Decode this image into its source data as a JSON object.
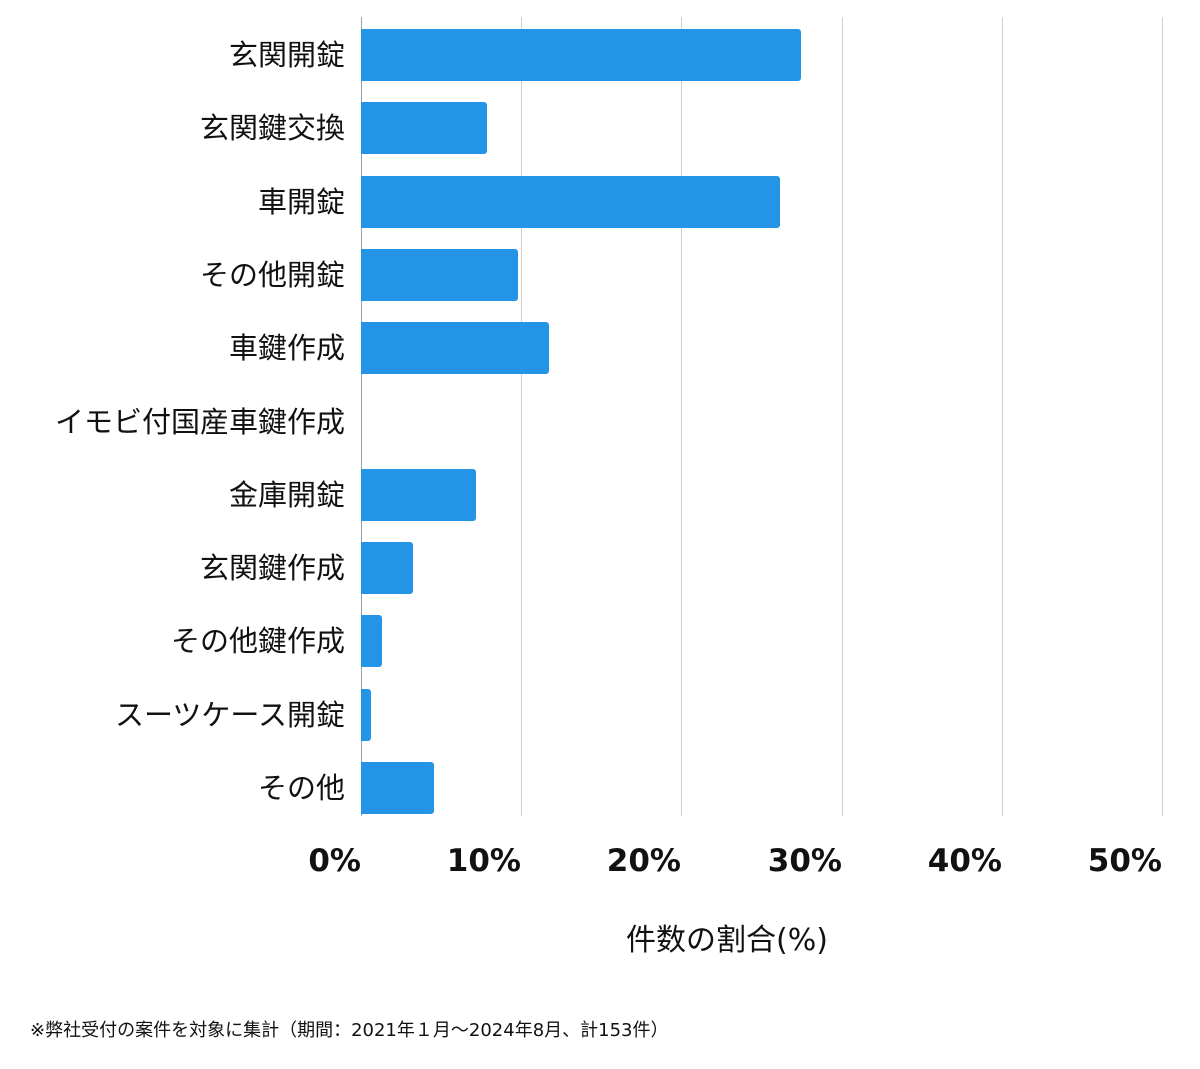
{
  "chart_data": {
    "type": "bar",
    "orientation": "horizontal",
    "title": "",
    "categories": [
      "玄関開錠",
      "玄関鍵交換",
      "車開錠",
      "その他開錠",
      "車鍵作成",
      "イモビ付国産車鍵作成",
      "金庫開錠",
      "玄関鍵作成",
      "その他鍵作成",
      "スーツケース開錠",
      "その他"
    ],
    "values": [
      27.45,
      7.84,
      26.14,
      9.8,
      11.76,
      0,
      7.19,
      3.27,
      1.31,
      0.65,
      4.58
    ],
    "xlabel": "件数の割合(%)",
    "ylabel": "",
    "xlim": [
      0,
      50
    ],
    "xticks": [
      0,
      10,
      20,
      30,
      40,
      50
    ],
    "xtick_labels": [
      "0%",
      "10%",
      "20%",
      "30%",
      "40%",
      "50%"
    ],
    "grid": "vertical",
    "legend": "none",
    "bar_color": "#2494e6",
    "footnote": "※弊社受付の案件を対象に集計（期間：2021年１月～2024年8月、計153件）"
  },
  "axis": {
    "xlabel": "件数の割合(%)",
    "ticks": [
      "0%",
      "10%",
      "20%",
      "30%",
      "40%",
      "50%"
    ]
  },
  "categories": [
    "玄関開錠",
    "玄関鍵交換",
    "車開錠",
    "その他開錠",
    "車鍵作成",
    "イモビ付国産車鍵作成",
    "金庫開錠",
    "玄関鍵作成",
    "その他鍵作成",
    "スーツケース開錠",
    "その他"
  ],
  "footnote": "※弊社受付の案件を対象に集計（期間：2021年１月～2024年8月、計153件）"
}
